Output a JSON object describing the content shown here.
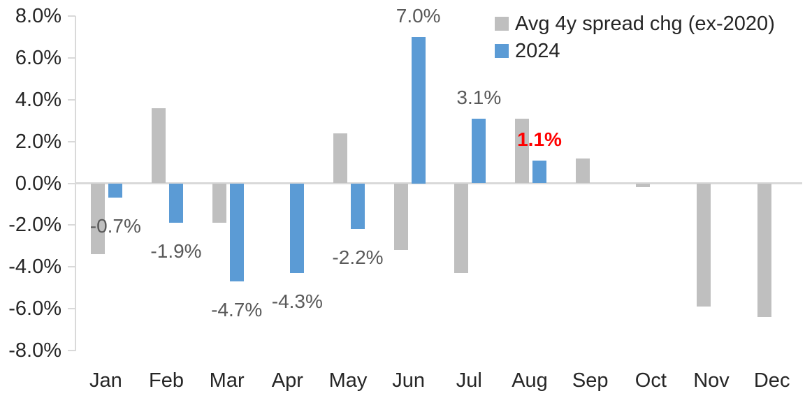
{
  "chart_data": {
    "type": "bar",
    "title": "",
    "categories": [
      "Jan",
      "Feb",
      "Mar",
      "Apr",
      "May",
      "Jun",
      "Jul",
      "Aug",
      "Sep",
      "Oct",
      "Nov",
      "Dec"
    ],
    "y_axis": {
      "min": -8,
      "max": 8,
      "step": 2,
      "tick_labels": [
        "8.0%",
        "6.0%",
        "4.0%",
        "2.0%",
        "0.0%",
        "-2.0%",
        "-4.0%",
        "-6.0%",
        "-8.0%"
      ]
    },
    "grid": false,
    "zero_line": true,
    "legend_position": "top-right",
    "series": [
      {
        "name": "Avg 4y spread chg (ex-2020)",
        "color": "#BFBFBF",
        "values": [
          -3.4,
          3.6,
          -1.9,
          0.0,
          2.4,
          -3.2,
          -4.3,
          3.1,
          1.2,
          -0.2,
          -5.9,
          -6.4
        ]
      },
      {
        "name": "2024",
        "color": "#5B9BD5",
        "values": [
          -0.7,
          -1.9,
          -4.7,
          -4.3,
          -2.2,
          7.0,
          3.1,
          1.1,
          null,
          null,
          null,
          null
        ]
      }
    ],
    "data_labels": [
      {
        "category": "Jan",
        "series": "2024",
        "text": "-0.7%",
        "color": "#595959",
        "bold": false
      },
      {
        "category": "Feb",
        "series": "2024",
        "text": "-1.9%",
        "color": "#595959",
        "bold": false
      },
      {
        "category": "Mar",
        "series": "2024",
        "text": "-4.7%",
        "color": "#595959",
        "bold": false
      },
      {
        "category": "Apr",
        "series": "2024",
        "text": "-4.3%",
        "color": "#595959",
        "bold": false
      },
      {
        "category": "May",
        "series": "2024",
        "text": "-2.2%",
        "color": "#595959",
        "bold": false
      },
      {
        "category": "Jun",
        "series": "2024",
        "text": "7.0%",
        "color": "#595959",
        "bold": false
      },
      {
        "category": "Jul",
        "series": "2024",
        "text": "3.1%",
        "color": "#595959",
        "bold": false
      },
      {
        "category": "Aug",
        "series": "2024",
        "text": "1.1%",
        "color": "#FF0000",
        "bold": true
      }
    ]
  },
  "colors": {
    "background": "#FFFFFF",
    "axis_line": "#D9D9D9",
    "axis_text": "#262626",
    "data_label_text": "#595959",
    "highlight_label": "#FF0000",
    "series_gray": "#BFBFBF",
    "series_blue": "#5B9BD5"
  }
}
